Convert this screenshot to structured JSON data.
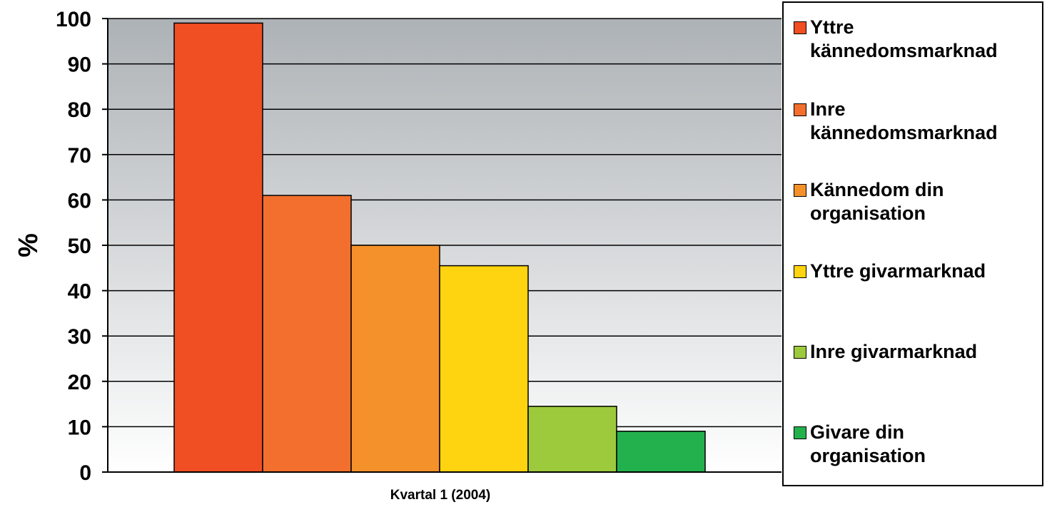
{
  "chart_data": {
    "type": "bar",
    "title": "",
    "xlabel": "Kvartal 1 (2004)",
    "ylabel": "%",
    "ylim": [
      0,
      100
    ],
    "yticks": [
      "0",
      "10",
      "20",
      "30",
      "40",
      "50",
      "60",
      "70",
      "80",
      "90",
      "100"
    ],
    "grid": true,
    "legend_position": "right",
    "series": [
      {
        "name": "Yttre\nkännedomsmarknad",
        "value": 99,
        "color": "#f04e23"
      },
      {
        "name": "Inre\nkännedomsmarknad",
        "value": 61,
        "color": "#f26f2e"
      },
      {
        "name": "Kännedom din\norganisation",
        "value": 50,
        "color": "#f5912a"
      },
      {
        "name": "Yttre givarmarknad",
        "value": 45.5,
        "color": "#fdd40f"
      },
      {
        "name": "Inre givarmarknad",
        "value": 14.5,
        "color": "#9dc93c"
      },
      {
        "name": "Givare din\norganisation",
        "value": 9,
        "color": "#23b14d"
      }
    ]
  }
}
